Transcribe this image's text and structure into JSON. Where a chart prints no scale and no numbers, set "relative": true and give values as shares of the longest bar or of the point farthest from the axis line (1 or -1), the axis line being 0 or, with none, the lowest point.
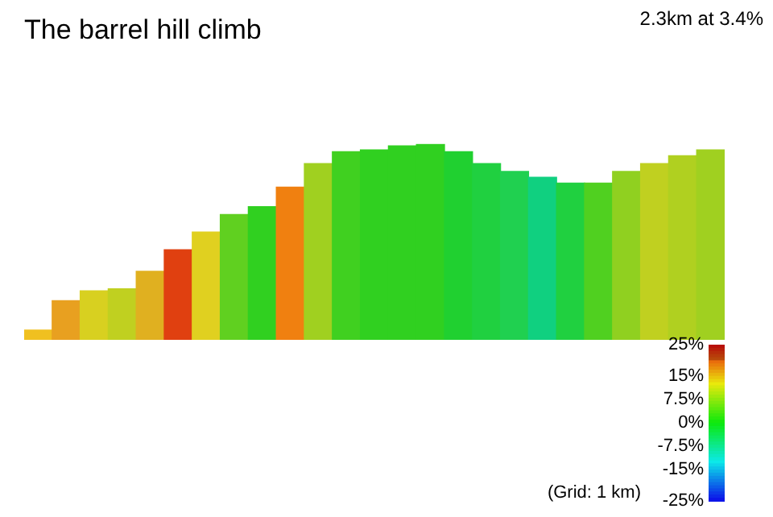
{
  "chart_data": {
    "type": "bar",
    "title": "The barrel hill climb",
    "relative": true,
    "categories": [
      null,
      null,
      null,
      null,
      null,
      null,
      null,
      null,
      null,
      null,
      null,
      null,
      null,
      null,
      null,
      null,
      null,
      null,
      null,
      null,
      null,
      null,
      null,
      null,
      null
    ],
    "values": [
      0.05,
      0.2,
      0.25,
      0.26,
      0.35,
      0.46,
      0.55,
      0.64,
      0.68,
      0.78,
      0.9,
      0.96,
      0.97,
      0.99,
      1,
      0.96,
      0.9,
      0.86,
      0.83,
      0.8,
      0.8,
      0.86,
      0.9,
      0.94,
      0.97
    ],
    "colors": [
      "#f0c020",
      "#e8a020",
      "#d8d020",
      "#c0d020",
      "#e0b020",
      "#e04010",
      "#e0d020",
      "#60d020",
      "#30d020",
      "#f08010",
      "#a0d020",
      "#40d020",
      "#30d020",
      "#30d020",
      "#30d020",
      "#20d030",
      "#20d040",
      "#20d050",
      "#10d080",
      "#20d040",
      "#50d020",
      "#90d020",
      "#c0d020",
      "#b0d020",
      "#a0d020"
    ],
    "annotations": [
      "2.3km at 3.4%",
      "(Grid: 1 km)"
    ],
    "clim": [
      -25,
      25
    ],
    "cticks": [
      {
        "value": 25,
        "label": "25%"
      },
      {
        "value": 15,
        "label": "15%"
      },
      {
        "value": 7.5,
        "label": "7.5%"
      },
      {
        "value": 0,
        "label": "0%"
      },
      {
        "value": -7.5,
        "label": "-7.5%"
      },
      {
        "value": -15,
        "label": "-15%"
      },
      {
        "value": -25,
        "label": "-25%"
      }
    ]
  }
}
